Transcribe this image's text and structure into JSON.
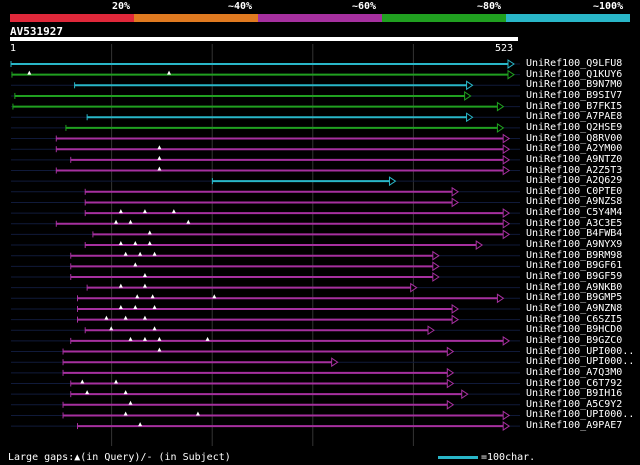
{
  "legend": {
    "labels": [
      "20%",
      "~40%",
      "~60%",
      "~80%",
      "~100%"
    ],
    "colors": [
      "#e0283a",
      "#e07a20",
      "#a6309f",
      "#20a020",
      "#29b6c8"
    ]
  },
  "query": {
    "id": "AV531927",
    "start": "1",
    "end": "523",
    "length": 523
  },
  "footer": {
    "gaps_text": "Large gaps:▲(in Query)/- (in Subject)",
    "scale_text": "=100char."
  },
  "hits": [
    {
      "name": "UniRef100_Q9LFU8",
      "color": "#29b6c8",
      "start": 1,
      "end": 523,
      "arrow": true,
      "gaps": []
    },
    {
      "name": "UniRef100_Q1KUY6",
      "color": "#20a020",
      "start": 2,
      "end": 523,
      "arrow": true,
      "gaps": [
        20,
        165
      ]
    },
    {
      "name": "UniRef100_B9N7M0",
      "color": "#29b6c8",
      "start": 67,
      "end": 480,
      "arrow": true,
      "gaps": []
    },
    {
      "name": "UniRef100_B9SIV7",
      "color": "#20a020",
      "start": 5,
      "end": 478,
      "arrow": true,
      "gaps": []
    },
    {
      "name": "UniRef100_B7FKI5",
      "color": "#20a020",
      "start": 3,
      "end": 512,
      "arrow": true,
      "gaps": []
    },
    {
      "name": "UniRef100_A7PAE8",
      "color": "#29b6c8",
      "start": 80,
      "end": 480,
      "arrow": true,
      "gaps": []
    },
    {
      "name": "UniRef100_Q2HSE9",
      "color": "#20a020",
      "start": 58,
      "end": 512,
      "arrow": true,
      "gaps": []
    },
    {
      "name": "UniRef100_Q8RV00",
      "color": "#a6309f",
      "start": 48,
      "end": 518,
      "arrow": true,
      "gaps": []
    },
    {
      "name": "UniRef100_A2YM00",
      "color": "#a6309f",
      "start": 48,
      "end": 518,
      "arrow": true,
      "gaps": [
        155
      ]
    },
    {
      "name": "UniRef100_A9NTZ0",
      "color": "#a6309f",
      "start": 63,
      "end": 518,
      "arrow": true,
      "gaps": [
        155
      ]
    },
    {
      "name": "UniRef100_A2Z5T3",
      "color": "#a6309f",
      "start": 48,
      "end": 518,
      "arrow": true,
      "gaps": [
        155
      ]
    },
    {
      "name": "UniRef100_A2Q629",
      "color": "#29b6c8",
      "start": 210,
      "end": 400,
      "arrow": true,
      "gaps": []
    },
    {
      "name": "UniRef100_C0PTE0",
      "color": "#a6309f",
      "start": 78,
      "end": 465,
      "arrow": true,
      "gaps": []
    },
    {
      "name": "UniRef100_A9NZS8",
      "color": "#a6309f",
      "start": 78,
      "end": 465,
      "arrow": true,
      "gaps": []
    },
    {
      "name": "UniRef100_C5Y4M4",
      "color": "#a6309f",
      "start": 78,
      "end": 518,
      "arrow": true,
      "gaps": [
        115,
        140,
        170
      ]
    },
    {
      "name": "UniRef100_A3C3E5",
      "color": "#a6309f",
      "start": 48,
      "end": 518,
      "arrow": true,
      "gaps": [
        110,
        125,
        185
      ]
    },
    {
      "name": "UniRef100_B4FWB4",
      "color": "#a6309f",
      "start": 86,
      "end": 518,
      "arrow": true,
      "gaps": [
        145
      ]
    },
    {
      "name": "UniRef100_A9NYX9",
      "color": "#a6309f",
      "start": 78,
      "end": 490,
      "arrow": true,
      "gaps": [
        115,
        130,
        145
      ]
    },
    {
      "name": "UniRef100_B9RM98",
      "color": "#a6309f",
      "start": 63,
      "end": 445,
      "arrow": true,
      "gaps": [
        120,
        135,
        150
      ]
    },
    {
      "name": "UniRef100_B9GF61",
      "color": "#a6309f",
      "start": 63,
      "end": 445,
      "arrow": true,
      "gaps": [
        130
      ]
    },
    {
      "name": "UniRef100_B9GF59",
      "color": "#a6309f",
      "start": 63,
      "end": 445,
      "arrow": true,
      "gaps": [
        140
      ]
    },
    {
      "name": "UniRef100_A9NKB0",
      "color": "#a6309f",
      "start": 80,
      "end": 422,
      "arrow": true,
      "gaps": [
        115,
        140
      ]
    },
    {
      "name": "UniRef100_B9GMP5",
      "color": "#a6309f",
      "start": 70,
      "end": 512,
      "arrow": true,
      "gaps": [
        132,
        148,
        212
      ]
    },
    {
      "name": "UniRef100_A9NZN8",
      "color": "#a6309f",
      "start": 70,
      "end": 465,
      "arrow": true,
      "gaps": [
        115,
        130,
        150
      ]
    },
    {
      "name": "UniRef100_C6SZI5",
      "color": "#a6309f",
      "start": 70,
      "end": 465,
      "arrow": true,
      "gaps": [
        100,
        120,
        140
      ]
    },
    {
      "name": "UniRef100_B9HCD0",
      "color": "#a6309f",
      "start": 78,
      "end": 440,
      "arrow": true,
      "gaps": [
        105,
        150
      ]
    },
    {
      "name": "UniRef100_B9GZC0",
      "color": "#a6309f",
      "start": 63,
      "end": 518,
      "arrow": true,
      "gaps": [
        125,
        140,
        155,
        205
      ]
    },
    {
      "name": "UniRef100_UPI000..",
      "color": "#a6309f",
      "start": 55,
      "end": 460,
      "arrow": true,
      "gaps": [
        155
      ]
    },
    {
      "name": "UniRef100_UPI000..",
      "color": "#a6309f",
      "start": 55,
      "end": 340,
      "arrow": true,
      "gaps": []
    },
    {
      "name": "UniRef100_A7Q3M0",
      "color": "#a6309f",
      "start": 55,
      "end": 460,
      "arrow": true,
      "gaps": []
    },
    {
      "name": "UniRef100_C6T792",
      "color": "#a6309f",
      "start": 63,
      "end": 460,
      "arrow": true,
      "gaps": [
        75,
        110
      ]
    },
    {
      "name": "UniRef100_B9IH16",
      "color": "#a6309f",
      "start": 63,
      "end": 475,
      "arrow": true,
      "gaps": [
        80,
        120
      ]
    },
    {
      "name": "UniRef100_A5C9Y2",
      "color": "#a6309f",
      "start": 55,
      "end": 460,
      "arrow": true,
      "gaps": [
        125
      ]
    },
    {
      "name": "UniRef100_UPI000..",
      "color": "#a6309f",
      "start": 55,
      "end": 518,
      "arrow": true,
      "gaps": [
        120,
        195
      ]
    },
    {
      "name": "UniRef100_A9PAE7",
      "color": "#a6309f",
      "start": 70,
      "end": 518,
      "arrow": true,
      "gaps": [
        135
      ]
    }
  ]
}
